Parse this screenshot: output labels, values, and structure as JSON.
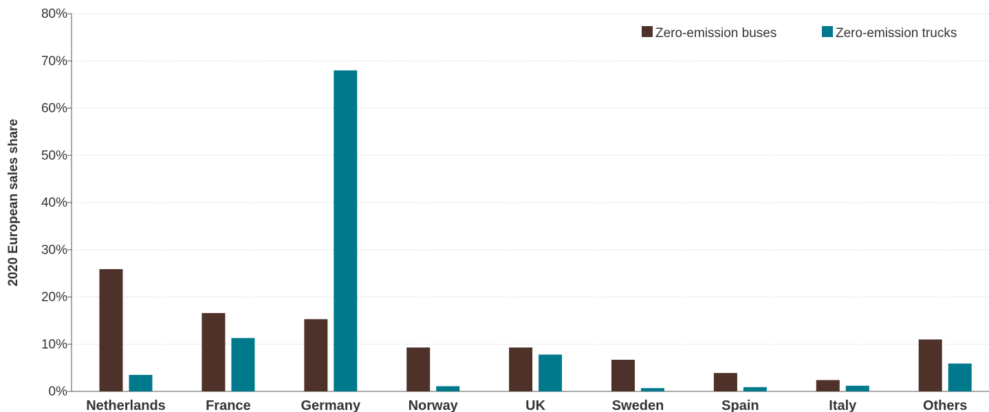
{
  "chart_data": {
    "type": "bar",
    "ylabel": "2020 European sales share",
    "xlabel": "",
    "ylim": [
      0,
      80
    ],
    "ytick_values": [
      0,
      10,
      20,
      30,
      40,
      50,
      60,
      70,
      80
    ],
    "ytick_labels": [
      "0%",
      "10%",
      "20%",
      "30%",
      "40%",
      "50%",
      "60%",
      "70%",
      "80%"
    ],
    "grid": true,
    "legend_position": "top-right",
    "categories": [
      "Netherlands",
      "France",
      "Germany",
      "Norway",
      "UK",
      "Sweden",
      "Spain",
      "Italy",
      "Others"
    ],
    "series": [
      {
        "name": "Zero-emission buses",
        "color": "#4e3229",
        "values": [
          25.9,
          16.6,
          15.3,
          9.3,
          9.3,
          6.7,
          3.9,
          2.4,
          11.0
        ]
      },
      {
        "name": "Zero-emission trucks",
        "color": "#00798c",
        "values": [
          3.5,
          11.3,
          68.0,
          1.1,
          7.8,
          0.7,
          0.9,
          1.2,
          5.9
        ]
      }
    ]
  }
}
